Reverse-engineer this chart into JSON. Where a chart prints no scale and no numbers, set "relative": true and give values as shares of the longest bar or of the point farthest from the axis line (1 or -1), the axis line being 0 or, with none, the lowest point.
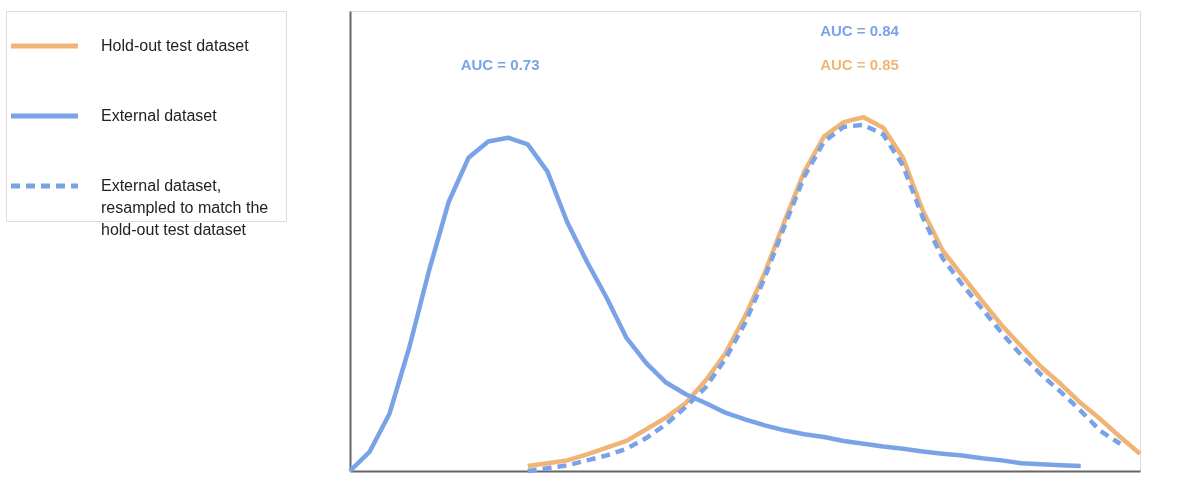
{
  "chart_data": {
    "type": "line",
    "relative": true,
    "legend": "left",
    "grid": false,
    "tick_labels": false,
    "categories": [
      null,
      null,
      null,
      null,
      null,
      null,
      null,
      null,
      null,
      null,
      null,
      null,
      null,
      null,
      null,
      null,
      null,
      null,
      null,
      null,
      null,
      null,
      null,
      null,
      null,
      null,
      null,
      null,
      null,
      null,
      null,
      null,
      null,
      null,
      null,
      null,
      null,
      null,
      null,
      null,
      null
    ],
    "series": [
      {
        "name": "Hold-out test dataset",
        "color": "#f0b576",
        "line_style": "solid",
        "values": [
          null,
          null,
          null,
          null,
          null,
          null,
          null,
          null,
          null,
          0.014,
          0.022,
          0.03,
          0.047,
          0.066,
          0.085,
          0.118,
          0.151,
          0.192,
          0.255,
          0.332,
          0.437,
          0.56,
          0.706,
          0.846,
          0.945,
          0.986,
          1,
          0.97,
          0.885,
          0.736,
          0.624,
          0.552,
          0.481,
          0.412,
          0.352,
          0.294,
          0.245,
          0.192,
          0.146,
          0.096,
          0.049
        ]
      },
      {
        "name": "External dataset",
        "color": "#79a3e6",
        "line_style": "solid",
        "values": [
          0,
          0.055,
          0.162,
          0.349,
          0.566,
          0.761,
          0.885,
          0.931,
          0.942,
          0.923,
          0.846,
          0.703,
          0.591,
          0.489,
          0.376,
          0.305,
          0.25,
          0.217,
          0.192,
          0.165,
          0.146,
          0.129,
          0.115,
          0.104,
          0.096,
          0.085,
          0.077,
          0.069,
          0.063,
          0.055,
          0.049,
          0.044,
          0.036,
          0.03,
          0.022,
          0.019,
          0.016,
          0.014,
          null,
          null,
          null
        ]
      },
      {
        "name": "External dataset, resampled to match the hold-out test dataset",
        "color": "#79a3e6",
        "line_style": "dashed",
        "values": [
          null,
          null,
          null,
          null,
          null,
          null,
          null,
          null,
          null,
          0,
          0.008,
          0.016,
          0.03,
          0.044,
          0.063,
          0.093,
          0.132,
          0.181,
          0.236,
          0.316,
          0.418,
          0.547,
          0.692,
          0.832,
          0.931,
          0.973,
          0.978,
          0.951,
          0.863,
          0.717,
          0.602,
          0.527,
          0.459,
          0.39,
          0.327,
          0.272,
          0.223,
          0.17,
          0.113,
          0.077,
          null
        ]
      }
    ],
    "annotations": [
      "AUC = 0.73",
      "AUC = 0.84",
      "AUC = 0.85"
    ]
  }
}
